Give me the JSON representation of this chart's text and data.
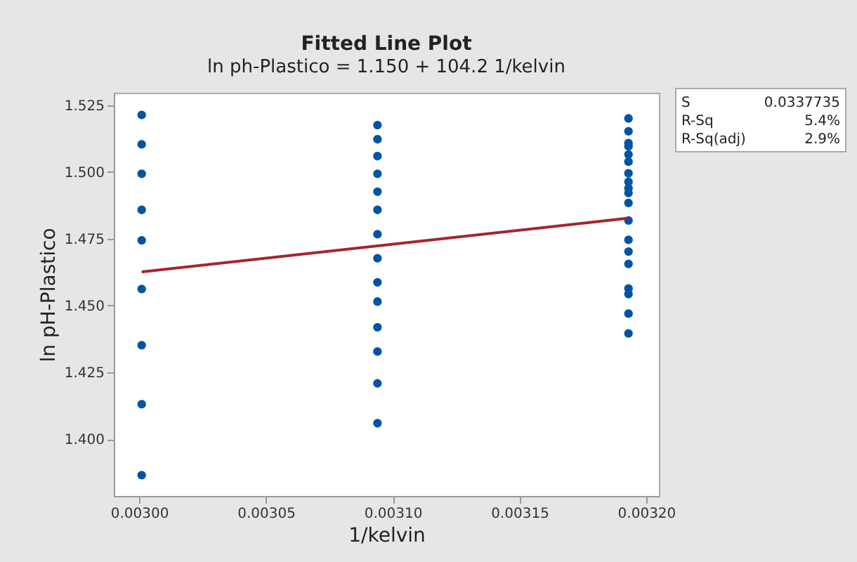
{
  "chart_data": {
    "type": "scatter",
    "title": "Fitted Line Plot",
    "subtitle": "ln ph-Plastico = 1.150 + 104.2 1/kelvin",
    "xlabel": "1/kelvin",
    "ylabel": "ln pH-Plastico",
    "series": [
      {
        "color": "#0054a6",
        "marker": "circle",
        "x": [
          0.003001,
          0.003001,
          0.003001,
          0.003001,
          0.003001,
          0.003001,
          0.003001,
          0.003001,
          0.003001,
          0.003094,
          0.003094,
          0.003094,
          0.003094,
          0.003094,
          0.003094,
          0.003094,
          0.003094,
          0.003094,
          0.003094,
          0.003094,
          0.003094,
          0.003094,
          0.003094,
          0.003193,
          0.003193,
          0.003193,
          0.003193,
          0.003193,
          0.003193,
          0.003193,
          0.003193,
          0.003193,
          0.003193,
          0.003193,
          0.003193,
          0.003193,
          0.003193,
          0.003193,
          0.003193,
          0.003193,
          0.003193,
          0.003193
        ],
        "values": [
          1.5213,
          1.5103,
          1.4993,
          1.4858,
          1.4744,
          1.4562,
          1.4352,
          1.4131,
          1.3866,
          1.5175,
          1.5122,
          1.5059,
          1.4993,
          1.4926,
          1.4858,
          1.4767,
          1.4677,
          1.4587,
          1.4515,
          1.4419,
          1.4328,
          1.4209,
          1.406,
          1.52,
          1.5152,
          1.5108,
          1.5096,
          1.5065,
          1.5038,
          1.4995,
          1.4963,
          1.4939,
          1.4921,
          1.4884,
          1.4818,
          1.4746,
          1.4702,
          1.4656,
          1.4564,
          1.4543,
          1.447,
          1.4396
        ]
      },
      {
        "type": "line",
        "line_style": "solid",
        "color": "#a4262c",
        "x": [
          0.003001,
          0.003193
        ],
        "values": [
          1.4626,
          1.4827
        ]
      }
    ],
    "xlim": [
      0.00299,
      0.003205
    ],
    "ylim": [
      1.3788,
      1.5296
    ],
    "xticks": [
      {
        "value": 0.003,
        "label": "0.00300"
      },
      {
        "value": 0.00305,
        "label": "0.00305"
      },
      {
        "value": 0.0031,
        "label": "0.00310"
      },
      {
        "value": 0.00315,
        "label": "0.00315"
      },
      {
        "value": 0.0032,
        "label": "0.00320"
      }
    ],
    "yticks": [
      {
        "value": 1.4,
        "label": "1.400"
      },
      {
        "value": 1.425,
        "label": "1.425"
      },
      {
        "value": 1.45,
        "label": "1.450"
      },
      {
        "value": 1.475,
        "label": "1.475"
      },
      {
        "value": 1.5,
        "label": "1.500"
      },
      {
        "value": 1.525,
        "label": "1.525"
      }
    ],
    "grid": false,
    "annotations": [
      "S",
      "0.0337735",
      "R-Sq",
      "5.4%",
      "R-Sq(adj)",
      "2.9%"
    ]
  }
}
